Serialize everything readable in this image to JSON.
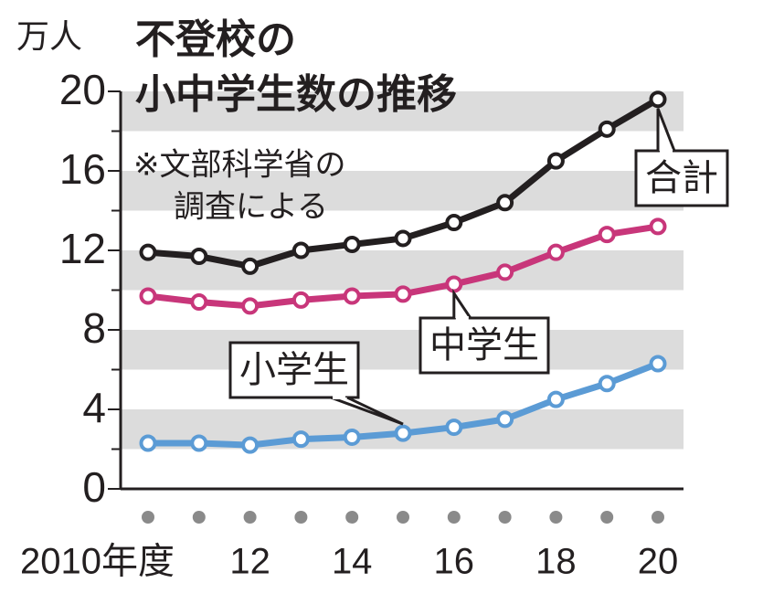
{
  "chart_data": {
    "type": "line",
    "title": [
      "不登校の",
      "小中学生数の推移"
    ],
    "note": [
      "※文部科学省の",
      "調査による"
    ],
    "y_label": "万人",
    "categories": [
      "2010年度",
      null,
      "12",
      null,
      "14",
      null,
      "16",
      null,
      "18",
      null,
      "20"
    ],
    "series": [
      {
        "name": "合計",
        "color": "#231f20",
        "values": [
          11.9,
          11.7,
          11.2,
          12.0,
          12.3,
          12.6,
          13.4,
          14.4,
          16.5,
          18.1,
          19.6
        ]
      },
      {
        "name": "中学生",
        "color": "#c8367a",
        "values": [
          9.7,
          9.4,
          9.2,
          9.5,
          9.7,
          9.8,
          10.3,
          10.9,
          11.9,
          12.8,
          13.2
        ]
      },
      {
        "name": "小学生",
        "color": "#5b9bd5",
        "values": [
          2.3,
          2.3,
          2.2,
          2.5,
          2.6,
          2.8,
          3.1,
          3.5,
          4.5,
          5.3,
          6.3
        ]
      }
    ],
    "ylim": [
      0,
      20
    ],
    "yticks": [
      0,
      4,
      8,
      12,
      16,
      20
    ],
    "grid": true
  }
}
